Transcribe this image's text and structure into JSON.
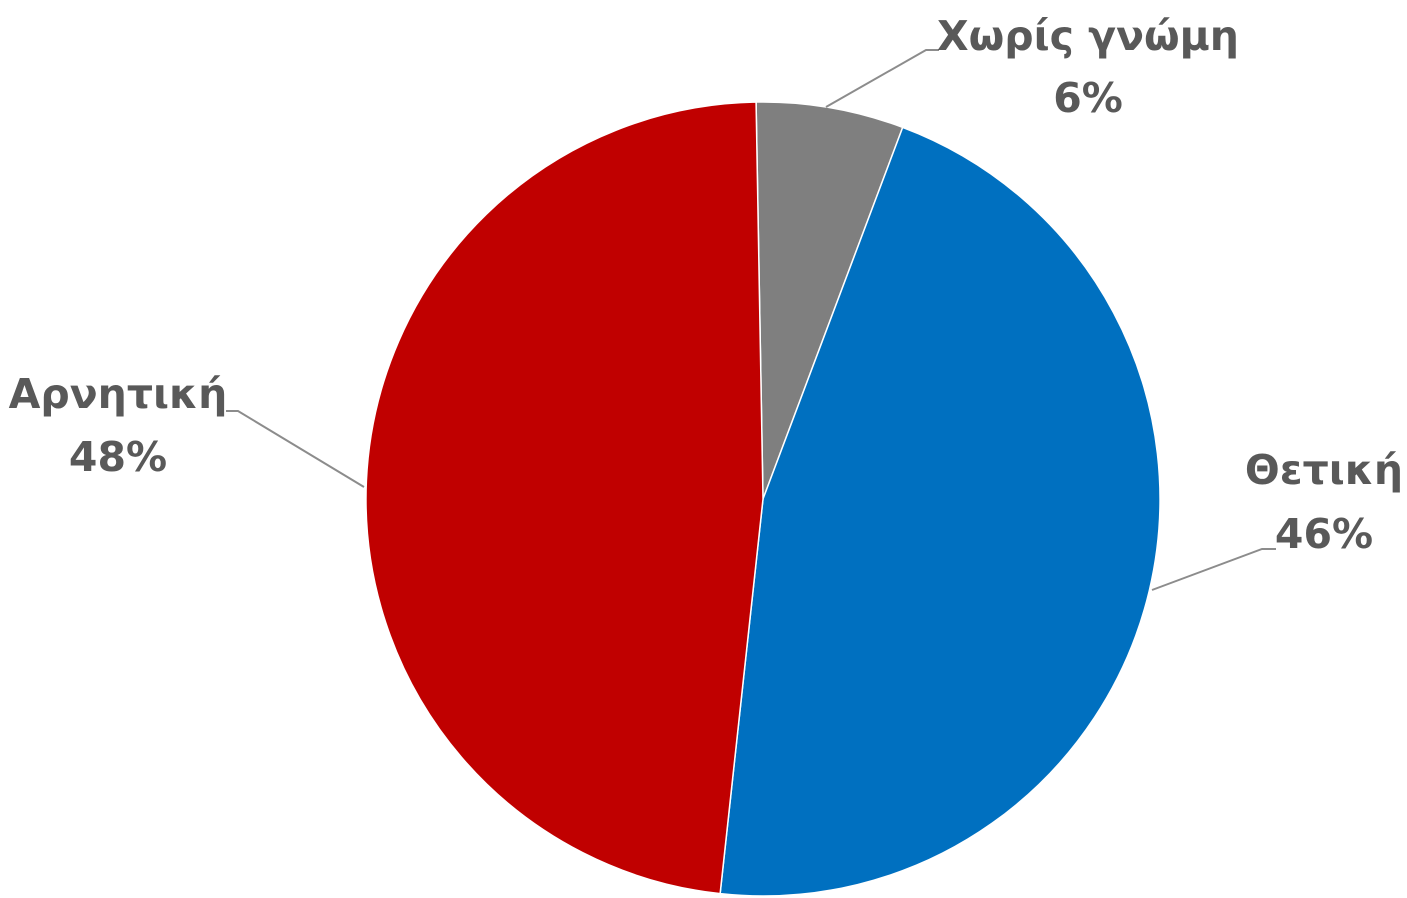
{
  "chart_data": {
    "type": "pie",
    "title": "",
    "start_angle_deg": -1,
    "direction": "clockwise",
    "legend": "none",
    "slices": [
      {
        "name": "Χωρίς γνώμη",
        "value": 6,
        "value_label": "6%",
        "color": "#7f7f7f"
      },
      {
        "name": "Θετική",
        "value": 46,
        "value_label": "46%",
        "color": "#0070c0"
      },
      {
        "name": "Αρνητική",
        "value": 48,
        "value_label": "48%",
        "color": "#c00000"
      }
    ]
  }
}
